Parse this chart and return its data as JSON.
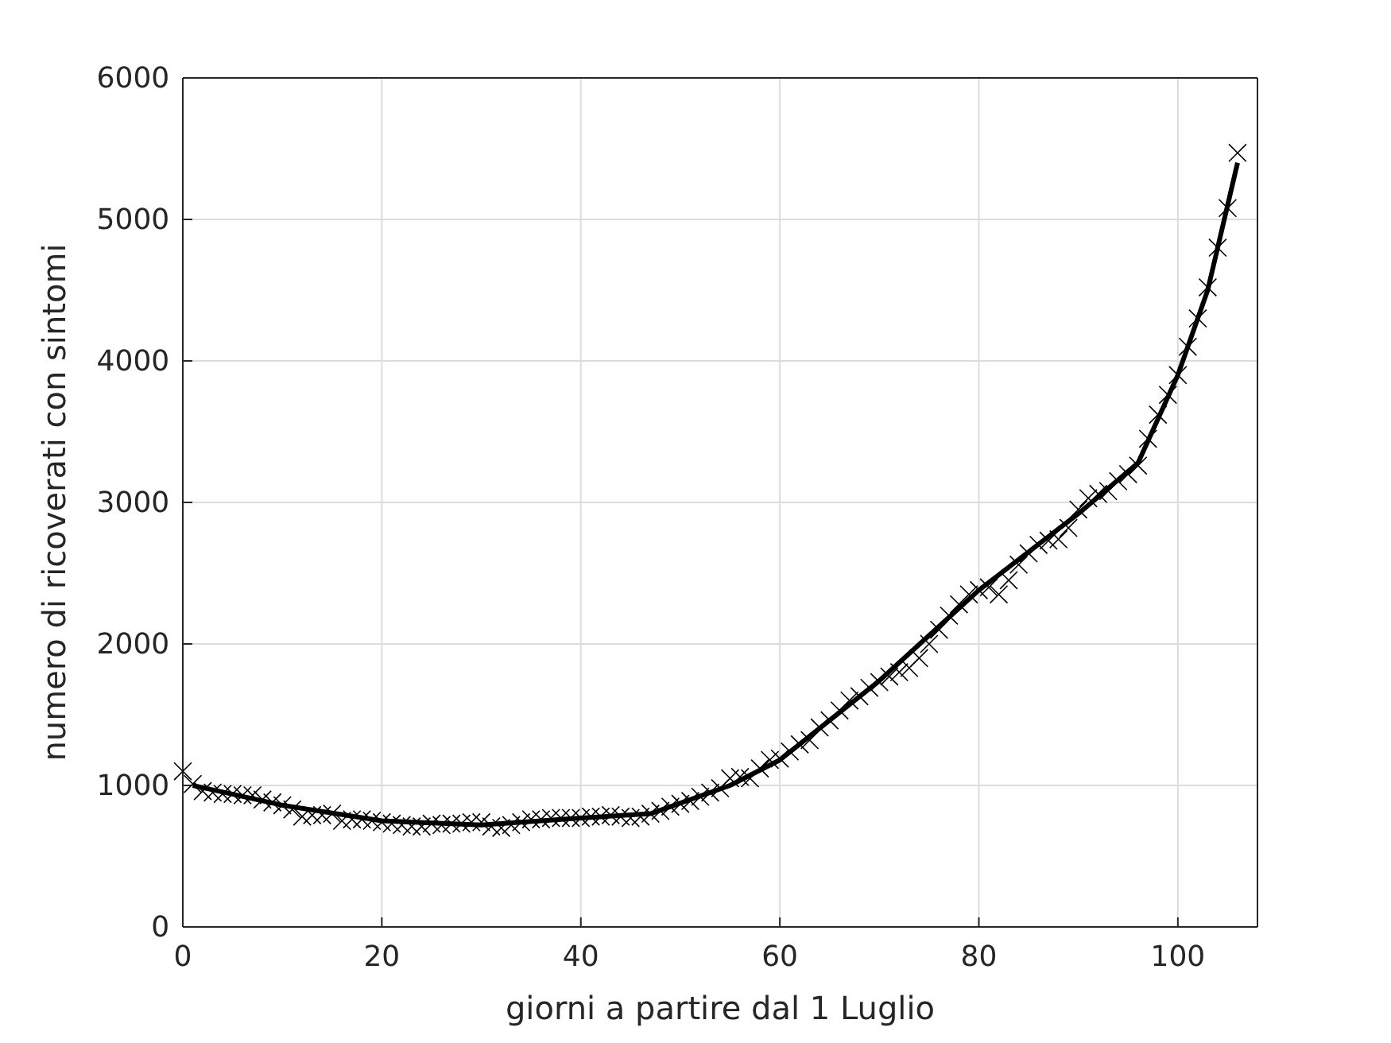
{
  "chart_data": {
    "type": "scatter",
    "xlabel": "giorni a partire dal 1 Luglio",
    "ylabel": "numero di ricoverati con sintomi",
    "xlim": [
      0,
      108
    ],
    "xticks": [
      0,
      20,
      40,
      60,
      80,
      100
    ],
    "ylim": [
      0,
      6000
    ],
    "yticks": [
      0,
      1000,
      2000,
      3000,
      4000,
      5000,
      6000
    ],
    "grid": true,
    "marker": "cross",
    "series": [
      {
        "color": "#000000",
        "x": [
          0,
          1,
          2,
          3,
          4,
          5,
          6,
          7,
          8,
          9,
          10,
          11,
          12,
          13,
          14,
          15,
          16,
          17,
          18,
          19,
          20,
          21,
          22,
          23,
          24,
          25,
          26,
          27,
          28,
          29,
          30,
          31,
          32,
          33,
          34,
          35,
          36,
          37,
          38,
          39,
          40,
          41,
          42,
          43,
          44,
          45,
          46,
          47,
          48,
          49,
          50,
          51,
          52,
          53,
          54,
          55,
          56,
          57,
          58,
          59,
          60,
          61,
          62,
          63,
          64,
          65,
          66,
          67,
          68,
          69,
          70,
          71,
          72,
          73,
          74,
          75,
          76,
          77,
          78,
          79,
          80,
          81,
          82,
          83,
          84,
          85,
          86,
          87,
          88,
          89,
          90,
          91,
          92,
          93,
          94,
          95,
          96,
          97,
          98,
          99,
          100,
          101,
          102,
          103,
          104,
          105,
          106
        ],
        "values": [
          1100,
          1010,
          960,
          950,
          940,
          940,
          930,
          930,
          900,
          880,
          860,
          830,
          780,
          790,
          790,
          800,
          750,
          760,
          760,
          750,
          740,
          730,
          720,
          710,
          710,
          730,
          720,
          730,
          730,
          740,
          740,
          710,
          700,
          720,
          740,
          760,
          760,
          770,
          770,
          770,
          770,
          780,
          780,
          790,
          780,
          770,
          780,
          800,
          820,
          850,
          870,
          890,
          920,
          950,
          980,
          1050,
          1060,
          1050,
          1120,
          1180,
          1190,
          1240,
          1290,
          1320,
          1410,
          1460,
          1530,
          1600,
          1630,
          1690,
          1730,
          1770,
          1800,
          1830,
          1900,
          2000,
          2100,
          2200,
          2280,
          2350,
          2380,
          2400,
          2350,
          2450,
          2560,
          2640,
          2700,
          2730,
          2740,
          2820,
          2950,
          3030,
          3060,
          3080,
          3150,
          3200,
          3260,
          3450,
          3620,
          3760,
          3900,
          4100,
          4300,
          4520,
          4800,
          5080,
          5470
        ]
      },
      {
        "type": "line",
        "color": "#000000",
        "marker": "none",
        "x": [
          1,
          10,
          20,
          30,
          40,
          47,
          55,
          60,
          70,
          80,
          90,
          96,
          100,
          103,
          106
        ],
        "values": [
          1000,
          860,
          750,
          720,
          770,
          800,
          1000,
          1180,
          1740,
          2380,
          2920,
          3280,
          3900,
          4500,
          5400
        ]
      }
    ]
  }
}
